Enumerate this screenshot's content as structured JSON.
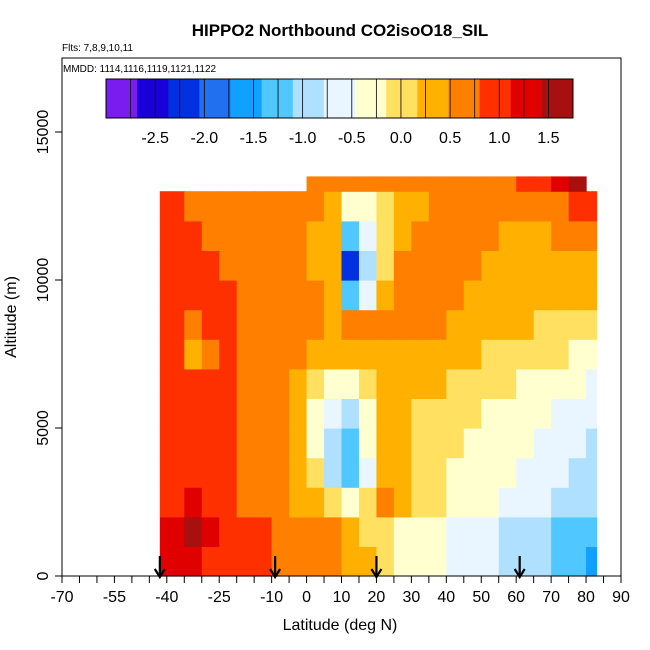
{
  "chart_data": {
    "type": "heatmap",
    "title": "HIPPO2 Northbound CO2isoO18_SIL",
    "flights_label": "Flts: 7,8,9,10,11",
    "mmdd_label": "MMDD: 1114,1116,1119,1121,1122",
    "xlabel": "Latitude (deg N)",
    "ylabel": "Altitude (m)",
    "xlim": [
      -70,
      90
    ],
    "ylim": [
      0,
      17500
    ],
    "x_ticks": [
      "-70",
      "-55",
      "-40",
      "-25",
      "-10",
      "0",
      "10",
      "20",
      "30",
      "40",
      "50",
      "60",
      "70",
      "80",
      "90"
    ],
    "y_ticks": [
      "0",
      "5000",
      "10000",
      "15000"
    ],
    "colorbar": {
      "range": [
        -3.0,
        1.75
      ],
      "tick_labels": [
        "-2.5",
        "-2.0",
        "-1.5",
        "-1.0",
        "-0.5",
        "0.0",
        "0.5",
        "1.0",
        "1.5"
      ],
      "colors": [
        "#7a1cf0",
        "#1a00d8",
        "#0030e0",
        "#2070f0",
        "#10a0ff",
        "#50c8ff",
        "#b0e0ff",
        "#eaf6ff",
        "#ffffd0",
        "#ffe060",
        "#ffb000",
        "#ff8000",
        "#ff3000",
        "#e00000",
        "#a81010"
      ]
    },
    "profile_latitudes": [
      -42,
      -9,
      20,
      61
    ],
    "lat_bins": [
      -42,
      -35,
      -30,
      -25,
      -20,
      -15,
      -10,
      -5,
      0,
      5,
      10,
      15,
      20,
      25,
      30,
      35,
      40,
      45,
      50,
      55,
      60,
      65,
      70,
      75,
      80
    ],
    "alt_bins": [
      0,
      1000,
      2000,
      3000,
      4000,
      5000,
      6000,
      7000,
      8000,
      9000,
      10000,
      11000,
      12000,
      13000
    ],
    "values": [
      [
        1.2,
        1.4,
        1.1,
        1.0,
        0.9,
        0.9,
        0.8,
        0.7,
        0.6,
        0.5,
        0.4,
        0.2,
        -0.1,
        -0.3,
        -0.4,
        -0.4,
        -0.5,
        -0.6,
        -0.7,
        -0.9,
        -1.0,
        -1.0,
        -1.2,
        -1.3,
        -1.6
      ],
      [
        1.2,
        1.5,
        1.3,
        1.0,
        0.9,
        0.9,
        0.8,
        0.7,
        0.6,
        0.5,
        0.4,
        0.1,
        -0.1,
        -0.3,
        -0.3,
        -0.4,
        -0.5,
        -0.5,
        -0.6,
        -0.8,
        -0.9,
        -1.0,
        -1.1,
        -1.2,
        -1.4
      ],
      [
        1.1,
        1.2,
        1.0,
        0.9,
        0.8,
        0.7,
        0.6,
        0.4,
        0.3,
        0.1,
        -0.2,
        0.0,
        0.5,
        0.3,
        0.1,
        -0.1,
        -0.2,
        -0.3,
        -0.4,
        -0.5,
        -0.6,
        -0.7,
        -0.8,
        -0.9,
        -1.0
      ],
      [
        1.0,
        1.1,
        1.0,
        0.9,
        0.8,
        0.6,
        0.5,
        0.3,
        -0.1,
        -0.8,
        -1.4,
        -0.5,
        0.3,
        0.3,
        0.1,
        -0.1,
        -0.2,
        -0.3,
        -0.4,
        -0.4,
        -0.5,
        -0.6,
        -0.7,
        -0.8,
        -0.9
      ],
      [
        1.0,
        1.1,
        1.1,
        0.9,
        0.8,
        0.6,
        0.5,
        0.3,
        -0.3,
        -1.0,
        -1.2,
        -0.4,
        0.2,
        0.2,
        0.1,
        0.0,
        -0.1,
        -0.2,
        -0.3,
        -0.3,
        -0.4,
        -0.5,
        -0.6,
        -0.7,
        -0.8
      ],
      [
        1.0,
        1.1,
        1.0,
        0.9,
        0.8,
        0.6,
        0.5,
        0.3,
        -0.2,
        -0.7,
        -0.8,
        -0.3,
        0.2,
        0.2,
        0.1,
        0.0,
        -0.1,
        -0.1,
        -0.2,
        -0.3,
        -0.3,
        -0.4,
        -0.5,
        -0.6,
        -0.7
      ],
      [
        1.0,
        1.0,
        1.0,
        0.9,
        0.8,
        0.6,
        0.5,
        0.4,
        0.1,
        -0.3,
        -0.3,
        0.0,
        0.3,
        0.3,
        0.2,
        0.2,
        0.1,
        0.0,
        0.0,
        -0.1,
        -0.2,
        -0.3,
        -0.4,
        -0.4,
        -0.5
      ],
      [
        1.1,
        0.3,
        0.6,
        0.9,
        0.7,
        0.6,
        0.5,
        0.5,
        0.4,
        0.3,
        0.3,
        0.4,
        0.4,
        0.4,
        0.3,
        0.3,
        0.2,
        0.2,
        0.1,
        0.0,
        0.0,
        -0.1,
        -0.1,
        -0.2,
        -0.3
      ],
      [
        1.0,
        0.8,
        0.9,
        1.0,
        0.7,
        0.6,
        0.5,
        0.5,
        0.5,
        0.4,
        0.5,
        0.6,
        0.6,
        0.6,
        0.5,
        0.5,
        0.4,
        0.3,
        0.3,
        0.2,
        0.2,
        0.1,
        0.1,
        0.0,
        -0.1
      ],
      [
        1.0,
        1.0,
        1.0,
        0.9,
        0.8,
        0.6,
        0.6,
        0.5,
        0.5,
        0.3,
        -1.4,
        -0.7,
        0.2,
        0.6,
        0.6,
        0.5,
        0.5,
        0.4,
        0.4,
        0.3,
        0.3,
        0.3,
        0.3,
        0.2,
        0.2
      ],
      [
        1.0,
        0.9,
        0.9,
        0.8,
        0.7,
        0.6,
        0.6,
        0.5,
        0.4,
        0.3,
        -2.1,
        -1.0,
        0.0,
        0.5,
        0.6,
        0.5,
        0.5,
        0.5,
        0.4,
        0.4,
        0.4,
        0.4,
        0.4,
        0.3,
        0.3
      ],
      [
        0.9,
        0.9,
        0.8,
        0.8,
        0.7,
        0.6,
        0.5,
        0.5,
        0.4,
        0.3,
        -1.2,
        -0.6,
        0.0,
        0.4,
        0.5,
        0.5,
        0.5,
        0.5,
        0.5,
        0.4,
        0.4,
        0.4,
        0.5,
        0.5,
        0.6
      ],
      [
        0.9,
        0.8,
        0.8,
        0.7,
        0.7,
        0.6,
        0.6,
        0.5,
        0.5,
        0.4,
        -0.3,
        -0.3,
        0.1,
        0.4,
        0.4,
        0.5,
        0.5,
        0.5,
        0.5,
        0.5,
        0.6,
        0.6,
        0.8,
        1.0,
        1.1
      ],
      [
        null,
        null,
        null,
        null,
        null,
        null,
        null,
        null,
        0.6,
        0.5,
        0.5,
        0.5,
        0.5,
        0.5,
        0.5,
        0.6,
        0.6,
        0.6,
        0.7,
        0.8,
        0.9,
        1.0,
        1.3,
        1.5,
        null
      ]
    ]
  }
}
